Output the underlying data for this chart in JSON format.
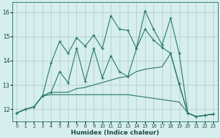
{
  "xlabel": "Humidex (Indice chaleur)",
  "x": [
    0,
    1,
    2,
    3,
    4,
    5,
    6,
    7,
    8,
    9,
    10,
    11,
    12,
    13,
    14,
    15,
    16,
    17,
    18,
    19,
    20,
    21,
    22,
    23
  ],
  "line_top": [
    11.85,
    12.0,
    12.1,
    12.55,
    13.9,
    14.8,
    14.3,
    14.95,
    14.6,
    15.05,
    14.5,
    15.85,
    15.3,
    15.25,
    14.5,
    16.05,
    15.3,
    14.65,
    15.75,
    14.3,
    11.85,
    11.7,
    11.75,
    11.8
  ],
  "line_mid": [
    11.85,
    12.0,
    12.1,
    12.55,
    12.7,
    13.55,
    13.1,
    14.5,
    13.15,
    14.5,
    13.3,
    14.2,
    13.55,
    13.35,
    14.5,
    15.3,
    14.85,
    14.55,
    14.3,
    13.05,
    11.85,
    11.7,
    11.75,
    11.8
  ],
  "line_low1": [
    11.85,
    12.0,
    12.1,
    12.55,
    12.7,
    12.7,
    12.7,
    12.85,
    12.9,
    13.0,
    13.1,
    13.2,
    13.3,
    13.35,
    13.55,
    13.65,
    13.7,
    13.75,
    14.3,
    13.0,
    11.85,
    11.7,
    11.75,
    11.8
  ],
  "line_low2": [
    11.85,
    12.0,
    12.1,
    12.55,
    12.6,
    12.6,
    12.6,
    12.6,
    12.6,
    12.6,
    12.6,
    12.6,
    12.6,
    12.6,
    12.55,
    12.5,
    12.45,
    12.4,
    12.35,
    12.3,
    11.85,
    11.7,
    11.75,
    11.8
  ],
  "line_color": "#2a7a6a",
  "bg_color": "#d6eeed",
  "grid_color": "#b0cfcf",
  "ylim": [
    11.5,
    16.4
  ],
  "yticks": [
    12,
    13,
    14,
    15,
    16
  ],
  "xticks": [
    0,
    1,
    2,
    3,
    4,
    5,
    6,
    7,
    8,
    9,
    10,
    11,
    12,
    13,
    14,
    15,
    16,
    17,
    18,
    19,
    20,
    21,
    22,
    23
  ]
}
